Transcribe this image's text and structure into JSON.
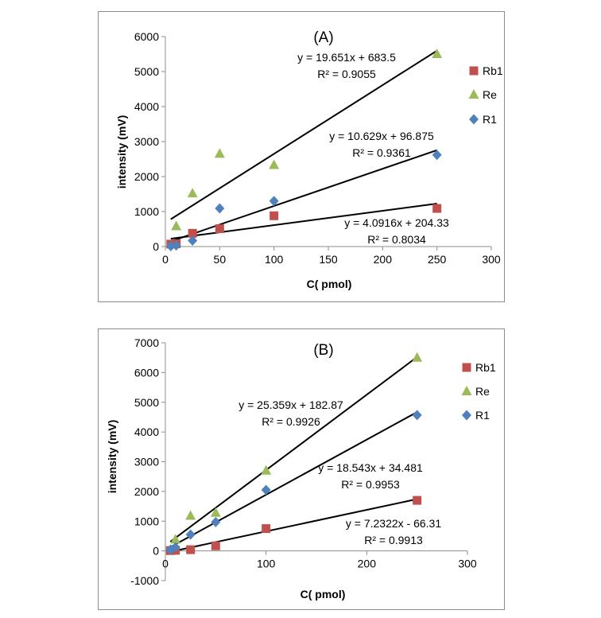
{
  "colors": {
    "Rb1": "#c0504d",
    "Re": "#9bbb59",
    "R1": "#4f81bd",
    "fit_line": "#000000",
    "frame": "#8c8c8c"
  },
  "chart_data": [
    {
      "type": "scatter",
      "title": "(A)",
      "xlabel": "C( pmol)",
      "ylabel": "intensity (mV)",
      "xlim": [
        0,
        300
      ],
      "ylim": [
        0,
        6000
      ],
      "xticks": [
        0,
        50,
        100,
        150,
        200,
        250,
        300
      ],
      "yticks": [
        0,
        1000,
        2000,
        3000,
        4000,
        5000,
        6000
      ],
      "xtick_labels": [
        "0",
        "50",
        "100",
        "150",
        "200",
        "250",
        "300"
      ],
      "ytick_labels": [
        "0",
        "1000",
        "2000",
        "3000",
        "4000",
        "5000",
        "6000"
      ],
      "legend": [
        "Rb1",
        "Re",
        "R1"
      ],
      "series": [
        {
          "name": "Rb1",
          "marker": "square",
          "x": [
            5,
            10,
            25,
            50,
            100,
            250
          ],
          "y": [
            70,
            80,
            380,
            510,
            880,
            1090
          ],
          "fit": {
            "slope": 4.0916,
            "intercept": 204.33,
            "x_range": [
              5,
              250
            ],
            "equation": "y = 4.0916x + 204.33",
            "r2": "R² = 0.8034"
          }
        },
        {
          "name": "Re",
          "marker": "triangle",
          "x": [
            10,
            25,
            50,
            100,
            250
          ],
          "y": [
            580,
            1520,
            2650,
            2330,
            5500
          ],
          "fit": {
            "slope": 19.651,
            "intercept": 683.5,
            "x_range": [
              5,
              250
            ],
            "equation": "y = 19.651x + 683.5",
            "r2": "R² = 0.9055"
          }
        },
        {
          "name": "R1",
          "marker": "diamond",
          "x": [
            5,
            10,
            25,
            50,
            100,
            250
          ],
          "y": [
            10,
            30,
            170,
            1090,
            1300,
            2620
          ],
          "fit": {
            "slope": 10.629,
            "intercept": 96.875,
            "x_range": [
              5,
              250
            ],
            "equation": "y = 10.629x + 96.875",
            "r2": "R² = 0.9361"
          }
        }
      ]
    },
    {
      "type": "scatter",
      "title": "(B)",
      "xlabel": "C( pmol)",
      "ylabel": "intensity (mV)",
      "xlim": [
        0,
        300
      ],
      "ylim": [
        -1000,
        7000
      ],
      "xticks": [
        0,
        100,
        200,
        300
      ],
      "yticks": [
        -1000,
        0,
        1000,
        2000,
        3000,
        4000,
        5000,
        6000,
        7000
      ],
      "xtick_labels": [
        "0",
        "100",
        "200",
        "300"
      ],
      "ytick_labels": [
        "-1000",
        "0",
        "1000",
        "2000",
        "3000",
        "4000",
        "5000",
        "6000",
        "7000"
      ],
      "legend": [
        "Rb1",
        "Re",
        "R1"
      ],
      "series": [
        {
          "name": "Rb1",
          "marker": "square",
          "x": [
            5,
            10,
            25,
            50,
            100,
            250
          ],
          "y": [
            10,
            20,
            40,
            170,
            750,
            1700
          ],
          "fit": {
            "slope": 7.2322,
            "intercept": -66.31,
            "x_range": [
              5,
              250
            ],
            "equation": "y = 7.2322x - 66.31",
            "r2": "R² = 0.9913"
          }
        },
        {
          "name": "Re",
          "marker": "triangle",
          "x": [
            10,
            25,
            50,
            100,
            250
          ],
          "y": [
            380,
            1180,
            1280,
            2700,
            6500
          ],
          "fit": {
            "slope": 25.359,
            "intercept": 182.87,
            "x_range": [
              5,
              250
            ],
            "equation": "y = 25.359x + 182.87",
            "r2": "R² = 0.9926"
          }
        },
        {
          "name": "R1",
          "marker": "diamond",
          "x": [
            5,
            10,
            25,
            50,
            100,
            250
          ],
          "y": [
            40,
            120,
            550,
            970,
            2050,
            4570
          ],
          "fit": {
            "slope": 18.543,
            "intercept": 34.481,
            "x_range": [
              5,
              250
            ],
            "equation": "y = 18.543x + 34.481",
            "r2": "R² = 0.9953"
          }
        }
      ]
    }
  ]
}
